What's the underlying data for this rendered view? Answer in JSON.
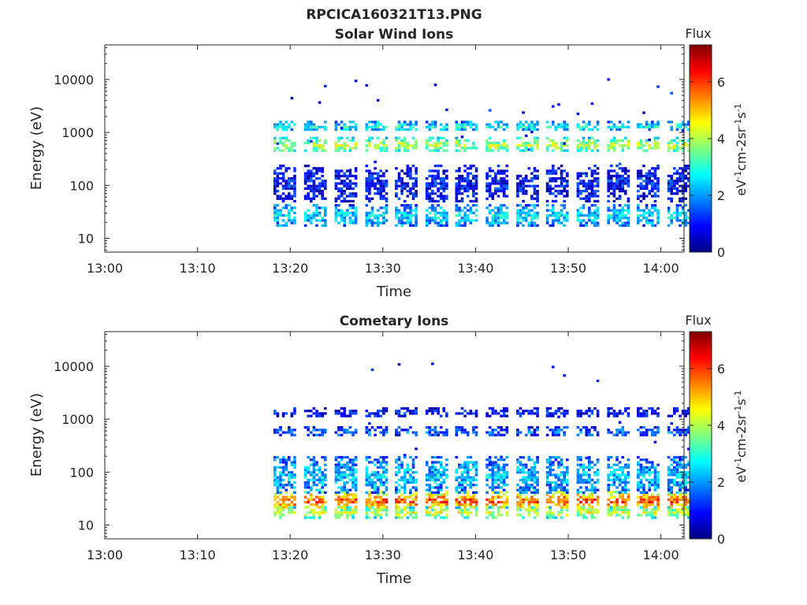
{
  "figure": {
    "title": "RPCICA160321T13.PNG"
  },
  "chart_data": [
    {
      "type": "heatmap",
      "title": "Solar Wind Ions",
      "xlabel": "Time",
      "ylabel": "Energy (eV)",
      "x_ticks": [
        "13:00",
        "13:10",
        "13:20",
        "13:30",
        "13:40",
        "13:50",
        "14:00"
      ],
      "y_ticks": [
        "10",
        "100",
        "1000",
        "10000"
      ],
      "y_scale": "log",
      "x_range_minutes": [
        0,
        62.5
      ],
      "y_range_ev": [
        5.5,
        45000
      ],
      "grid": false,
      "colorbar": {
        "label_top": "Flux",
        "unit": "eV-1cm-2sr-1s-1",
        "ticks": [
          "0",
          "2",
          "4",
          "6"
        ],
        "range": [
          0,
          7.3
        ],
        "colormap": "jet"
      },
      "sweep_start_minutes": [
        18.2,
        21.5,
        24.8,
        28.1,
        31.3,
        34.6,
        37.8,
        41.1,
        44.4,
        47.6,
        50.9,
        54.2,
        57.4,
        60.7
      ],
      "bands": [
        {
          "energy_ev": 600,
          "width_decades": 0.14,
          "level": 4.1
        },
        {
          "energy_ev": 1350,
          "width_decades": 0.09,
          "level": 2.9
        },
        {
          "energy_ev": 28,
          "width_decades": 0.2,
          "level": 2.6
        },
        {
          "energy_ev": 110,
          "width_decades": 0.35,
          "level": 1.0
        }
      ]
    },
    {
      "type": "heatmap",
      "title": "Cometary Ions",
      "xlabel": "Time",
      "ylabel": "Energy (eV)",
      "x_ticks": [
        "13:00",
        "13:10",
        "13:20",
        "13:30",
        "13:40",
        "13:50",
        "14:00"
      ],
      "y_ticks": [
        "10",
        "100",
        "1000",
        "10000"
      ],
      "y_scale": "log",
      "x_range_minutes": [
        0,
        62.5
      ],
      "y_range_ev": [
        5.5,
        45000
      ],
      "grid": false,
      "colorbar": {
        "label_top": "Flux",
        "unit": "eV-1cm-2sr-1s-1",
        "ticks": [
          "0",
          "2",
          "4",
          "6"
        ],
        "range": [
          0,
          7.3
        ],
        "colormap": "jet"
      },
      "sweep_start_minutes": [
        18.2,
        21.5,
        24.8,
        28.1,
        31.3,
        34.6,
        37.8,
        41.1,
        44.4,
        47.6,
        50.9,
        54.2,
        57.4,
        60.7
      ],
      "bands": [
        {
          "energy_ev": 30,
          "width_decades": 0.17,
          "level": 6.0
        },
        {
          "energy_ev": 18,
          "width_decades": 0.1,
          "level": 4.4
        },
        {
          "energy_ev": 90,
          "width_decades": 0.35,
          "level": 2.4
        },
        {
          "energy_ev": 600,
          "width_decades": 0.09,
          "level": 1.6
        },
        {
          "energy_ev": 1400,
          "width_decades": 0.08,
          "level": 1.0
        }
      ]
    }
  ]
}
